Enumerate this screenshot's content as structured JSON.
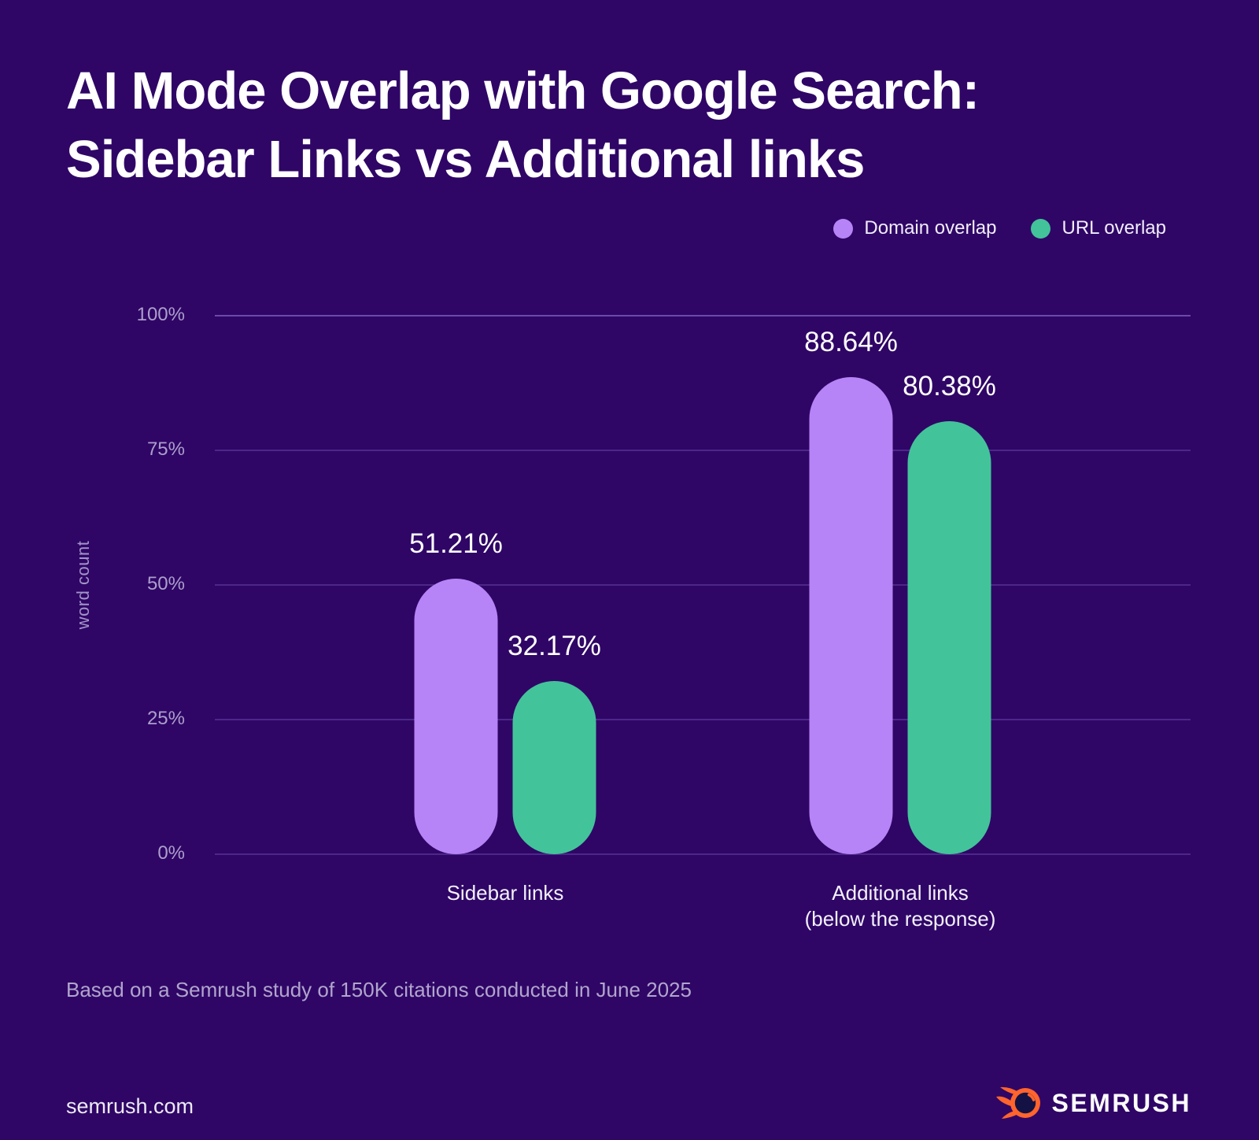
{
  "header": {
    "title_line1": "AI Mode Overlap with Google Search:",
    "title_line2": "Sidebar Links vs Additional links"
  },
  "legend": {
    "items": [
      {
        "label": "Domain overlap",
        "color": "#b784f7"
      },
      {
        "label": "URL overlap",
        "color": "#43c39a"
      }
    ]
  },
  "chart_data": {
    "type": "bar",
    "title": "AI Mode Overlap with Google Search: Sidebar Links vs Additional links",
    "categories": [
      "Sidebar links",
      "Additional links\n(below the response)"
    ],
    "series": [
      {
        "name": "Domain overlap",
        "color": "#b784f7",
        "values": [
          51.21,
          88.64
        ],
        "labels": [
          "51.21%",
          "88.64%"
        ]
      },
      {
        "name": "URL overlap",
        "color": "#43c39a",
        "values": [
          32.17,
          80.38
        ],
        "labels": [
          "32.17%",
          "80.38%"
        ]
      }
    ],
    "xlabel": "",
    "ylabel": "word count",
    "ylim": [
      0,
      100
    ],
    "yticks": [
      {
        "label": "0%",
        "value": 0
      },
      {
        "label": "25%",
        "value": 25
      },
      {
        "label": "50%",
        "value": 50
      },
      {
        "label": "75%",
        "value": 75
      },
      {
        "label": "100%",
        "value": 100
      }
    ],
    "grid": true,
    "legend_position": "top-right"
  },
  "footer": {
    "note": "Based on a Semrush study of 150K citations conducted in June 2025",
    "website": "semrush.com"
  },
  "logo": {
    "wordmark": "SEMRUSH"
  },
  "colors": {
    "background": "#2f0666",
    "domain_overlap": "#b784f7",
    "url_overlap": "#43c39a",
    "logo_orange": "#ff642d",
    "logo_ball_dark": "#141244"
  }
}
